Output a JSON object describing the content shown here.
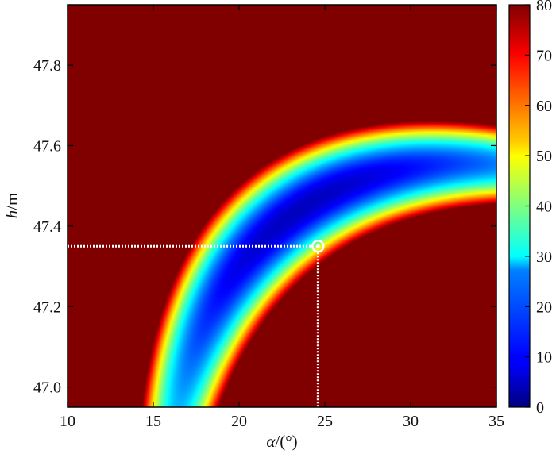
{
  "chart_data": {
    "type": "heatmap",
    "title": "",
    "xlabel": {
      "symbol": "α",
      "unit": "/(°)"
    },
    "ylabel": {
      "symbol": "h",
      "unit": "/m"
    },
    "xlim": [
      10,
      35
    ],
    "ylim": [
      46.95,
      47.95
    ],
    "x_ticks": [
      10,
      15,
      20,
      25,
      30,
      35
    ],
    "y_ticks": [
      47.0,
      47.2,
      47.4,
      47.6,
      47.8
    ],
    "y_tick_labels": [
      "47.0",
      "47.2",
      "47.4",
      "47.6",
      "47.8"
    ],
    "colorbar": {
      "range": [
        0,
        80
      ],
      "ticks": [
        0,
        10,
        20,
        30,
        40,
        50,
        60,
        70,
        80
      ],
      "colormap": "jet",
      "saturated_color": "#800000"
    },
    "surface": {
      "valley_center": {
        "x": 23.5,
        "y": 47.44
      },
      "min_value": 5,
      "saturation": 80
    },
    "marked_point": {
      "x": 24.6,
      "y": 47.35
    },
    "guide_line_color": "#ffffff"
  }
}
